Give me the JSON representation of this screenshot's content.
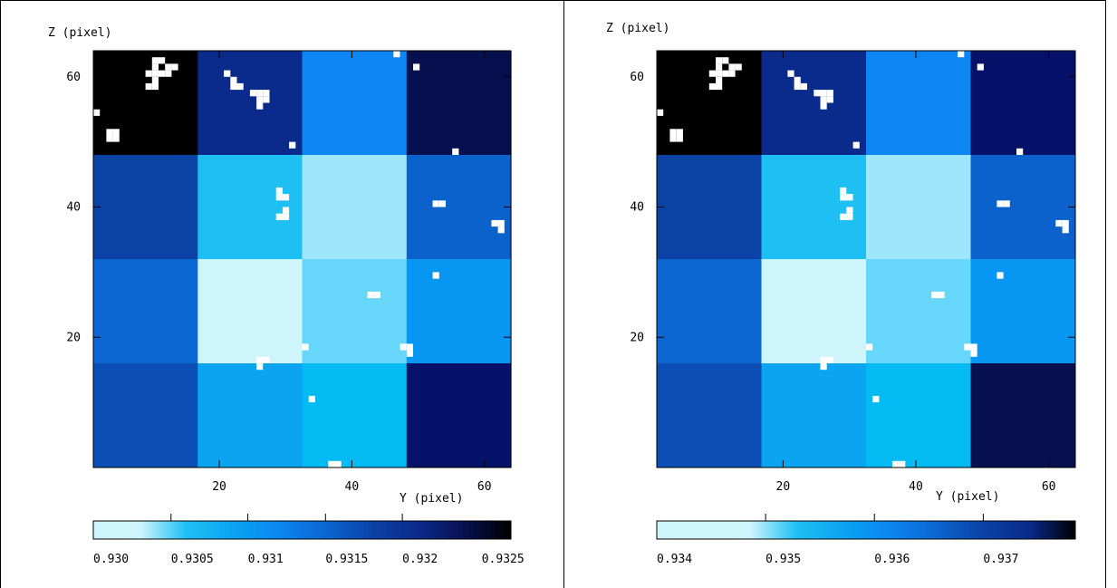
{
  "chart_data": [
    {
      "type": "heatmap",
      "title": "",
      "xlabel": "Y (pixel)",
      "ylabel": "Z (pixel)",
      "xlim": [
        1,
        64
      ],
      "ylim": [
        0,
        64
      ],
      "xticks": [
        20,
        40,
        60
      ],
      "yticks": [
        20,
        40,
        60
      ],
      "grid": false,
      "rows_top_to_bottom": [
        [
          "#000000",
          "#0a2a8c",
          "#0b86f2",
          "#06104e"
        ],
        [
          "#0b42a6",
          "#1ec0f4",
          "#9fe6fb",
          "#0b62cc"
        ],
        [
          "#0b66d2",
          "#cff5fc",
          "#66d6fa",
          "#0896f3"
        ],
        [
          "#0b4eb4",
          "#0aa4f1",
          "#04baf3",
          "#06126a"
        ]
      ],
      "masked_cells": [
        [
          10,
          62
        ],
        [
          11,
          62
        ],
        [
          10,
          61
        ],
        [
          12,
          61
        ],
        [
          13,
          61
        ],
        [
          9,
          60
        ],
        [
          10,
          60
        ],
        [
          11,
          60
        ],
        [
          12,
          60
        ],
        [
          10,
          59
        ],
        [
          9,
          58
        ],
        [
          10,
          58
        ],
        [
          1,
          54
        ],
        [
          3,
          51
        ],
        [
          4,
          51
        ],
        [
          3,
          50
        ],
        [
          4,
          50
        ],
        [
          21,
          60
        ],
        [
          22,
          59
        ],
        [
          22,
          58
        ],
        [
          23,
          58
        ],
        [
          25,
          57
        ],
        [
          26,
          57
        ],
        [
          27,
          57
        ],
        [
          26,
          56
        ],
        [
          27,
          56
        ],
        [
          26,
          55
        ],
        [
          47,
          63
        ],
        [
          50,
          61
        ],
        [
          31,
          49
        ],
        [
          56,
          48
        ],
        [
          29,
          42
        ],
        [
          29,
          41
        ],
        [
          30,
          41
        ],
        [
          30,
          39
        ],
        [
          29,
          38
        ],
        [
          30,
          38
        ],
        [
          53,
          40
        ],
        [
          54,
          40
        ],
        [
          62,
          37
        ],
        [
          63,
          37
        ],
        [
          63,
          36
        ],
        [
          53,
          29
        ],
        [
          43,
          26
        ],
        [
          44,
          26
        ],
        [
          33,
          18
        ],
        [
          48,
          18
        ],
        [
          49,
          18
        ],
        [
          49,
          17
        ],
        [
          26,
          16
        ],
        [
          27,
          16
        ],
        [
          26,
          15
        ],
        [
          34,
          10
        ],
        [
          37,
          0
        ],
        [
          38,
          0
        ]
      ],
      "colorbar": {
        "ticks": [
          "0.930",
          "0.9305",
          "0.931",
          "0.9315",
          "0.932",
          "0.9325"
        ],
        "stops": [
          "#cff5fc",
          "#cff5fc",
          "#1ec0f4",
          "#0aa4f1",
          "#0b86f2",
          "#0b66d2",
          "#0b42a6",
          "#0a2a8c",
          "#06104e",
          "#000000"
        ]
      }
    },
    {
      "type": "heatmap",
      "title": "",
      "xlabel": "Y (pixel)",
      "ylabel": "Z (pixel)",
      "xlim": [
        1,
        64
      ],
      "ylim": [
        0,
        64
      ],
      "xticks": [
        20,
        40,
        60
      ],
      "yticks": [
        20,
        40,
        60
      ],
      "grid": false,
      "rows_top_to_bottom": [
        [
          "#000000",
          "#0a2a8c",
          "#0b86f2",
          "#06126a"
        ],
        [
          "#0b42a6",
          "#1ec0f4",
          "#9fe6fb",
          "#0b62cc"
        ],
        [
          "#0b66d2",
          "#cff5fc",
          "#66d6fa",
          "#0896f3"
        ],
        [
          "#0b4eb4",
          "#0aa4f1",
          "#04baf3",
          "#06104e"
        ]
      ],
      "masked_cells": [
        [
          10,
          62
        ],
        [
          11,
          62
        ],
        [
          10,
          61
        ],
        [
          12,
          61
        ],
        [
          13,
          61
        ],
        [
          9,
          60
        ],
        [
          10,
          60
        ],
        [
          11,
          60
        ],
        [
          12,
          60
        ],
        [
          10,
          59
        ],
        [
          9,
          58
        ],
        [
          10,
          58
        ],
        [
          1,
          54
        ],
        [
          3,
          51
        ],
        [
          4,
          51
        ],
        [
          3,
          50
        ],
        [
          4,
          50
        ],
        [
          21,
          60
        ],
        [
          22,
          59
        ],
        [
          22,
          58
        ],
        [
          23,
          58
        ],
        [
          25,
          57
        ],
        [
          26,
          57
        ],
        [
          27,
          57
        ],
        [
          26,
          56
        ],
        [
          27,
          56
        ],
        [
          26,
          55
        ],
        [
          47,
          63
        ],
        [
          50,
          61
        ],
        [
          31,
          49
        ],
        [
          56,
          48
        ],
        [
          29,
          42
        ],
        [
          29,
          41
        ],
        [
          30,
          41
        ],
        [
          30,
          39
        ],
        [
          29,
          38
        ],
        [
          30,
          38
        ],
        [
          53,
          40
        ],
        [
          54,
          40
        ],
        [
          62,
          37
        ],
        [
          63,
          37
        ],
        [
          63,
          36
        ],
        [
          53,
          29
        ],
        [
          43,
          26
        ],
        [
          44,
          26
        ],
        [
          33,
          18
        ],
        [
          48,
          18
        ],
        [
          49,
          18
        ],
        [
          49,
          17
        ],
        [
          26,
          16
        ],
        [
          27,
          16
        ],
        [
          26,
          15
        ],
        [
          34,
          10
        ],
        [
          37,
          0
        ],
        [
          38,
          0
        ]
      ],
      "colorbar": {
        "ticks": [
          "0.934",
          "0.935",
          "0.936",
          "0.937"
        ],
        "stops": [
          "#cff5fc",
          "#cff5fc",
          "#cff5fc",
          "#1ec0f4",
          "#0aa4f1",
          "#0b86f2",
          "#0b66d2",
          "#0b42a6",
          "#0a2a8c",
          "#000000"
        ]
      }
    }
  ]
}
